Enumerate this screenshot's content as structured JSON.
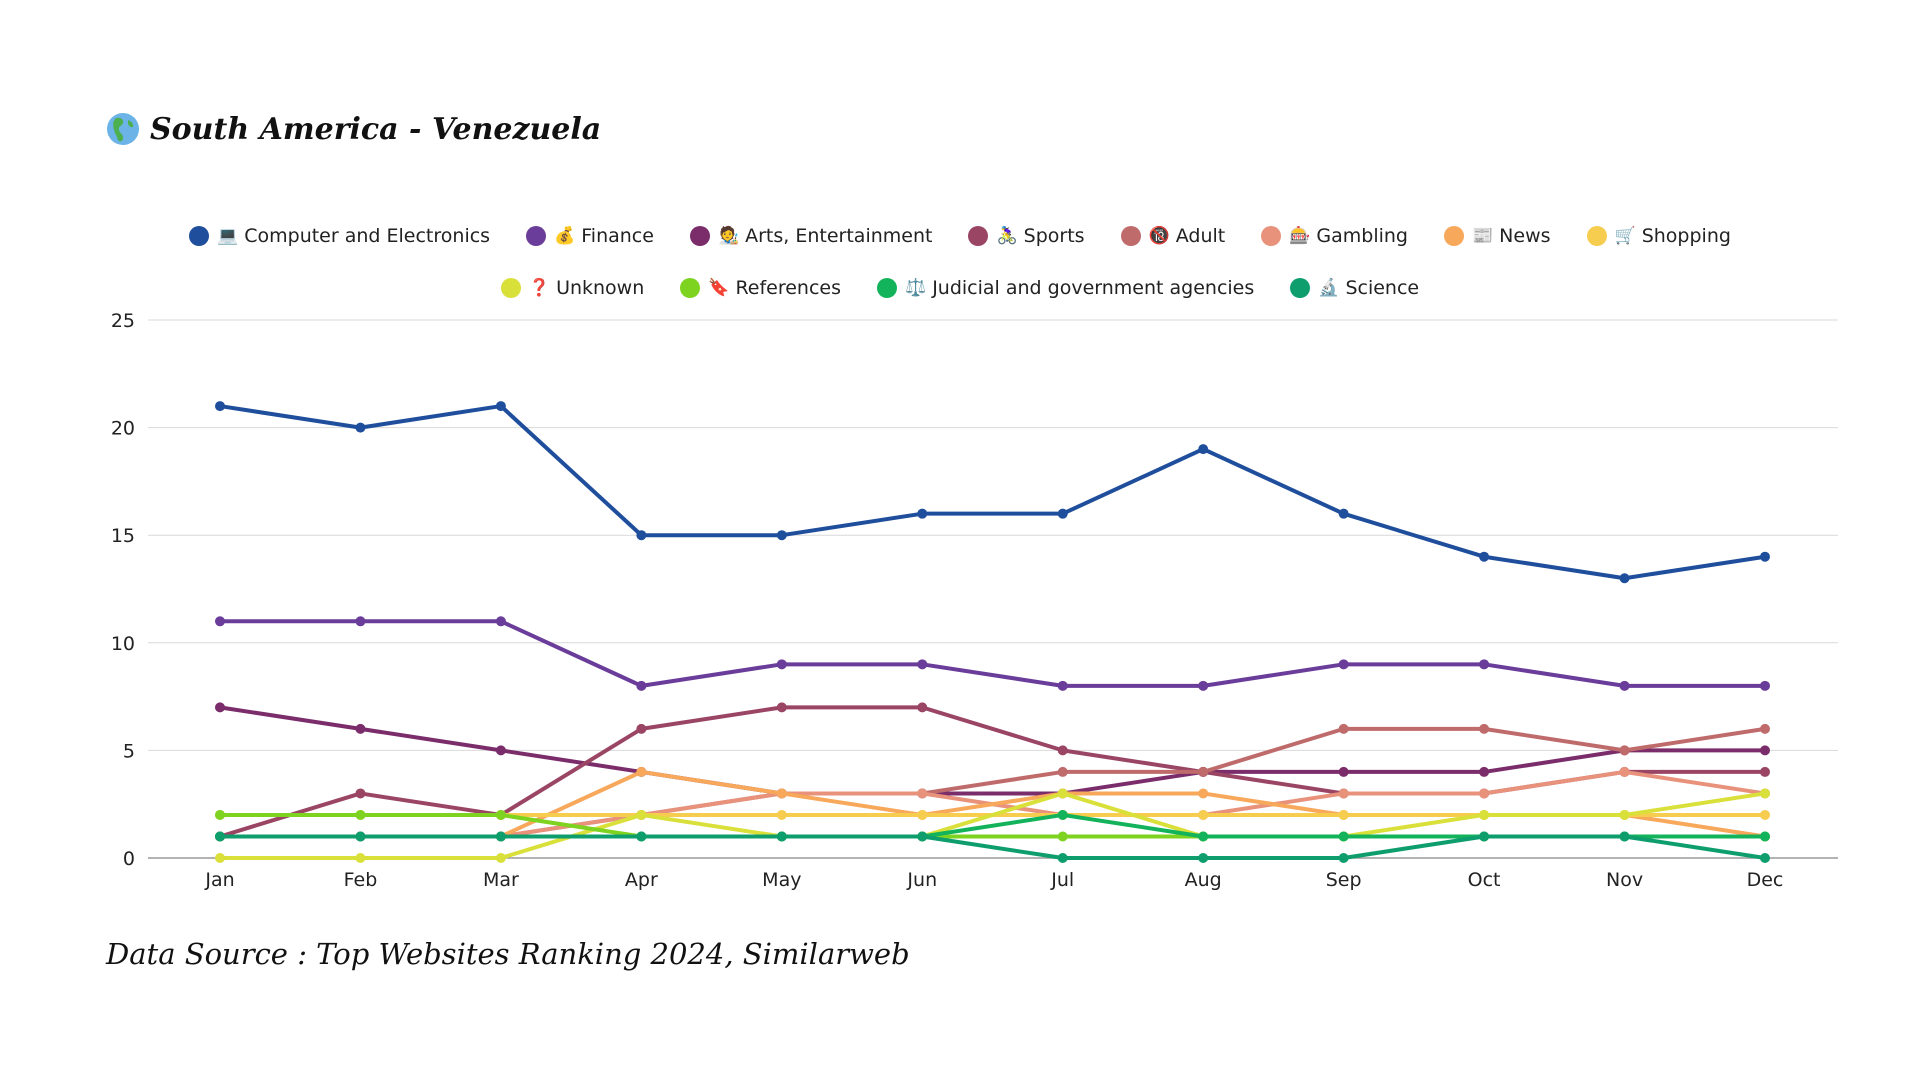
{
  "title": {
    "icon": "globe-americas-icon",
    "text": "South America - Venezuela"
  },
  "source": "Data Source : Top Websites Ranking 2024, Similarweb",
  "chart_data": {
    "type": "line",
    "title": "South America - Venezuela",
    "xlabel": "",
    "ylabel": "",
    "ylim": [
      0,
      25
    ],
    "yticks": [
      0,
      5,
      10,
      15,
      20,
      25
    ],
    "grid": true,
    "legend_position": "top",
    "categories": [
      "Jan",
      "Feb",
      "Mar",
      "Apr",
      "May",
      "Jun",
      "Jul",
      "Aug",
      "Sep",
      "Oct",
      "Nov",
      "Dec"
    ],
    "series": [
      {
        "name": "Computer and Electronics",
        "icon": "💻",
        "color": "#1f4e9c",
        "values": [
          21,
          20,
          21,
          15,
          15,
          16,
          16,
          19,
          16,
          14,
          13,
          14
        ]
      },
      {
        "name": "Finance",
        "icon": "💰",
        "color": "#6a3d9a",
        "values": [
          11,
          11,
          11,
          8,
          9,
          9,
          8,
          8,
          9,
          9,
          8,
          8
        ]
      },
      {
        "name": "Arts, Entertainment",
        "icon": "🧑‍🎨",
        "color": "#7b2d6b",
        "values": [
          7,
          6,
          5,
          4,
          3,
          3,
          3,
          4,
          4,
          4,
          5,
          5
        ]
      },
      {
        "name": "Sports",
        "icon": "🚴‍♀️",
        "color": "#9b4565",
        "values": [
          1,
          3,
          2,
          6,
          7,
          7,
          5,
          4,
          3,
          3,
          4,
          4
        ]
      },
      {
        "name": "Adult",
        "icon": "🔞",
        "color": "#bf6b6b",
        "values": [
          1,
          1,
          1,
          2,
          3,
          3,
          4,
          4,
          6,
          6,
          5,
          6
        ]
      },
      {
        "name": "Gambling",
        "icon": "🎰",
        "color": "#e8927c",
        "values": [
          1,
          1,
          1,
          2,
          3,
          3,
          2,
          2,
          3,
          3,
          4,
          3
        ]
      },
      {
        "name": "News",
        "icon": "📰",
        "color": "#f7a85b",
        "values": [
          1,
          1,
          1,
          4,
          3,
          2,
          3,
          3,
          2,
          2,
          2,
          1
        ]
      },
      {
        "name": "Shopping",
        "icon": "🛒",
        "color": "#f7cd4f",
        "values": [
          2,
          2,
          2,
          2,
          2,
          2,
          2,
          2,
          2,
          2,
          2,
          2
        ]
      },
      {
        "name": "Unknown",
        "icon": "❓",
        "color": "#d9e03a",
        "values": [
          0,
          0,
          0,
          2,
          1,
          1,
          3,
          1,
          1,
          2,
          2,
          3
        ]
      },
      {
        "name": "References",
        "icon": "🔖",
        "color": "#7ed321",
        "values": [
          2,
          2,
          2,
          1,
          1,
          1,
          1,
          1,
          1,
          1,
          1,
          1
        ]
      },
      {
        "name": "Judicial and government agencies",
        "icon": "⚖️",
        "color": "#12b35a",
        "values": [
          1,
          1,
          1,
          1,
          1,
          1,
          2,
          1,
          1,
          1,
          1,
          1
        ]
      },
      {
        "name": "Science",
        "icon": "🔬",
        "color": "#0e9e6e",
        "values": [
          1,
          1,
          1,
          1,
          1,
          1,
          0,
          0,
          0,
          1,
          1,
          0
        ]
      }
    ]
  }
}
